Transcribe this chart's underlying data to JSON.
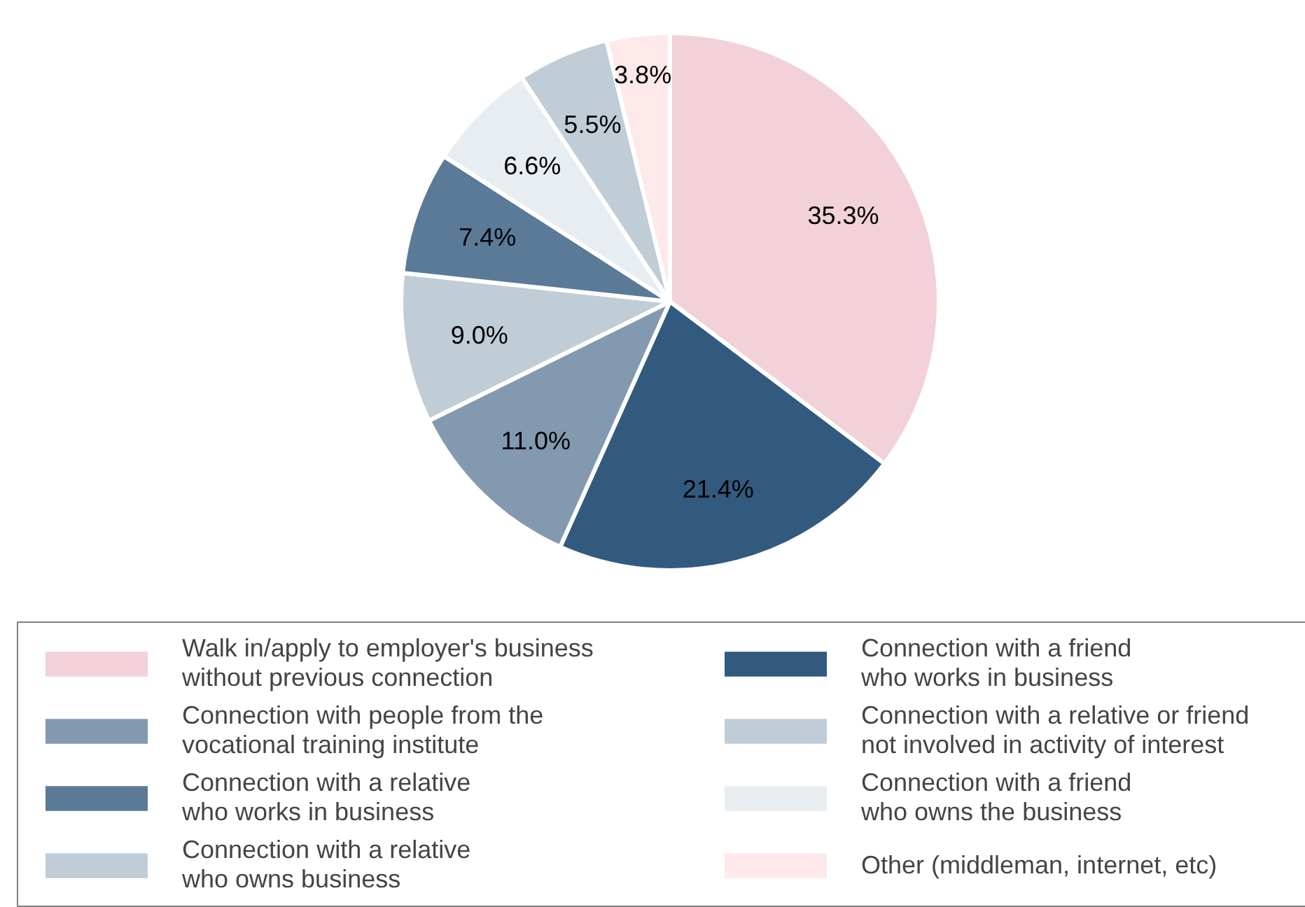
{
  "chart_data": {
    "type": "pie",
    "categories": [
      "Walk in/apply to employer's business\nwithout previous connection",
      "Connection with a friend\nwho works in business",
      "Connection with people from the\nvocational training institute",
      "Connection with a relative or friend\nnot involved in activity of interest",
      "Connection with a relative\nwho works in business",
      "Connection with a friend\nwho owns the business",
      "Connection with a relative\nwho owns business",
      "Other (middleman, internet, etc)"
    ],
    "values": [
      35.3,
      21.4,
      11.0,
      9.0,
      7.4,
      6.6,
      5.5,
      3.8
    ],
    "colors": [
      "#f2d1d9",
      "#325a7e",
      "#8399b0",
      "#c0ccd6",
      "#5a7a98",
      "#e8edf1",
      "#c0ccd6",
      "#fde8ea"
    ],
    "value_labels": [
      "35.3%",
      "21.4%",
      "11.0%",
      "9.0%",
      "7.4%",
      "6.6%",
      "5.5%",
      "3.8%"
    ],
    "legend": "bottom"
  }
}
